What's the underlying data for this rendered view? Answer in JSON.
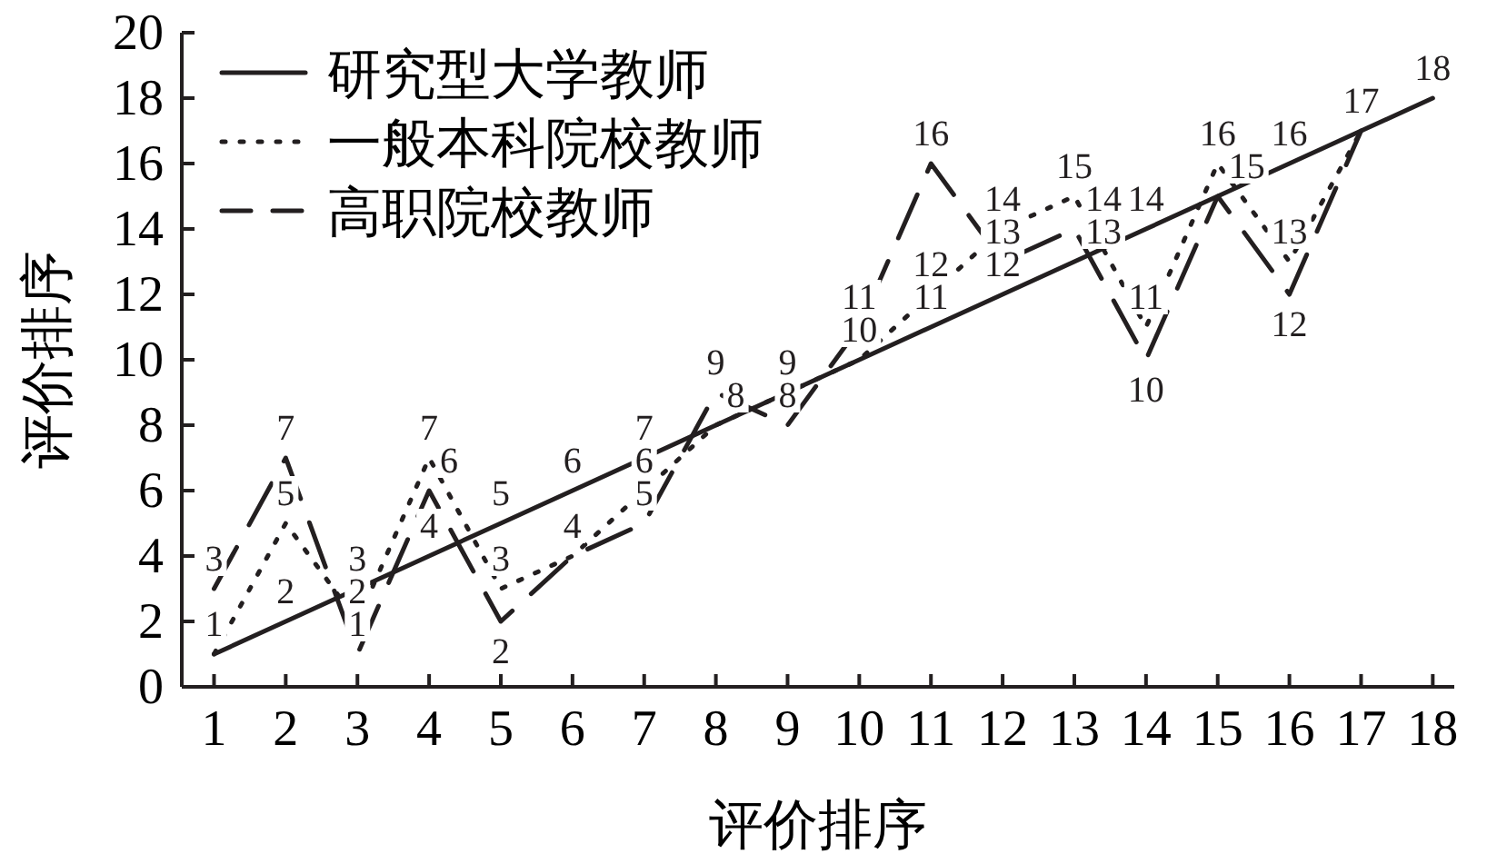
{
  "chart_data": {
    "type": "line",
    "xlabel": "评价排序",
    "ylabel": "评价排序",
    "x": [
      1,
      2,
      3,
      4,
      5,
      6,
      7,
      8,
      9,
      10,
      11,
      12,
      13,
      14,
      15,
      16,
      17,
      18
    ],
    "xlim": [
      0.55,
      18.3
    ],
    "xticks": [
      1,
      2,
      3,
      4,
      5,
      6,
      7,
      8,
      9,
      10,
      11,
      12,
      13,
      14,
      15,
      16,
      17,
      18
    ],
    "ylim": [
      0,
      20
    ],
    "yticks": [
      0,
      2,
      4,
      6,
      8,
      10,
      12,
      14,
      16,
      18,
      20
    ],
    "legend": "top left",
    "grid": false,
    "marker": "none",
    "series": [
      {
        "name": "研究型大学教师",
        "color": "#231f20",
        "line_style": "solid",
        "values": [
          1,
          2,
          3,
          4,
          5,
          6,
          7,
          8,
          9,
          10,
          11,
          12,
          13,
          14,
          15,
          16,
          17,
          18
        ],
        "value_labels": [
          "1",
          "2",
          "3",
          "4",
          "5",
          "6",
          "7",
          "8",
          "9",
          "10",
          "11",
          "12",
          "13",
          "14",
          "15",
          "16",
          "17",
          "18"
        ]
      },
      {
        "name": "一般本科院校教师",
        "color": "#231f20",
        "line_style": "dotted",
        "values": [
          1,
          5,
          2,
          7,
          3,
          4,
          6,
          8,
          9,
          10,
          12,
          14,
          15,
          11,
          16,
          13,
          17,
          null
        ],
        "value_labels": [
          null,
          "5",
          "2",
          "7",
          "3",
          "4",
          "6",
          null,
          null,
          null,
          "12",
          "14",
          "15",
          "11",
          "16",
          "13",
          null,
          null
        ]
      },
      {
        "name": "高职院校教师",
        "color": "#231f20",
        "line_style": "dashed",
        "values": [
          3,
          7,
          1,
          6,
          2,
          4,
          5,
          9,
          8,
          11,
          16,
          13,
          14,
          10,
          15,
          12,
          17,
          null
        ],
        "value_labels": [
          "3",
          "7",
          "1",
          "6",
          "2",
          null,
          "5",
          "9",
          "8",
          "11",
          "16",
          "13",
          "14",
          "10",
          null,
          "12",
          null,
          null
        ]
      }
    ]
  }
}
